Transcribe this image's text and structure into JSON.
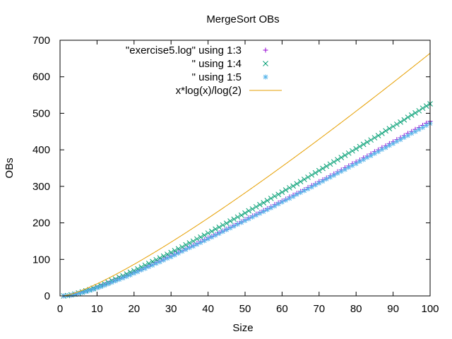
{
  "chart_data": {
    "type": "scatter",
    "title": "MergeSort OBs",
    "xlabel": "Size",
    "ylabel": "OBs",
    "xlim": [
      0,
      100
    ],
    "ylim": [
      0,
      700
    ],
    "xticks": [
      0,
      10,
      20,
      30,
      40,
      50,
      60,
      70,
      80,
      90,
      100
    ],
    "yticks": [
      0,
      100,
      200,
      300,
      400,
      500,
      600,
      700
    ],
    "grid": false,
    "legend_position": "top-inside",
    "series": [
      {
        "name": "\"exercise5.log\" using 1:3",
        "marker": "plus",
        "color": "#9400d3",
        "x": [
          1,
          2,
          3,
          4,
          5,
          6,
          7,
          8,
          9,
          10,
          11,
          12,
          13,
          14,
          15,
          16,
          17,
          18,
          19,
          20,
          21,
          22,
          23,
          24,
          25,
          26,
          27,
          28,
          29,
          30,
          31,
          32,
          33,
          34,
          35,
          36,
          37,
          38,
          39,
          40,
          41,
          42,
          43,
          44,
          45,
          46,
          47,
          48,
          49,
          50,
          51,
          52,
          53,
          54,
          55,
          56,
          57,
          58,
          59,
          60,
          61,
          62,
          63,
          64,
          65,
          66,
          67,
          68,
          69,
          70,
          71,
          72,
          73,
          74,
          75,
          76,
          77,
          78,
          79,
          80,
          81,
          82,
          83,
          84,
          85,
          86,
          87,
          88,
          89,
          90,
          91,
          92,
          93,
          94,
          95,
          96,
          97,
          98,
          99,
          100
        ],
        "y": [
          0,
          1,
          2,
          5,
          7,
          10,
          13,
          16,
          19,
          23,
          27,
          31,
          35,
          39,
          43,
          48,
          51,
          56,
          60,
          65,
          69,
          73,
          78,
          82,
          87,
          92,
          96,
          101,
          106,
          110,
          115,
          120,
          124,
          129,
          134,
          139,
          144,
          149,
          154,
          159,
          163,
          168,
          173,
          178,
          183,
          188,
          193,
          198,
          203,
          209,
          214,
          219,
          224,
          229,
          234,
          239,
          244,
          250,
          255,
          260,
          265,
          271,
          276,
          281,
          286,
          291,
          297,
          302,
          307,
          313,
          318,
          323,
          329,
          334,
          340,
          345,
          351,
          356,
          362,
          367,
          372,
          378,
          383,
          389,
          395,
          400,
          406,
          411,
          417,
          422,
          428,
          433,
          439,
          445,
          450,
          456,
          461,
          467,
          473,
          478
        ]
      },
      {
        "name": "\" using 1:4",
        "marker": "cross",
        "color": "#009e73",
        "x": [
          1,
          2,
          3,
          4,
          5,
          6,
          7,
          8,
          9,
          10,
          11,
          12,
          13,
          14,
          15,
          16,
          17,
          18,
          19,
          20,
          21,
          22,
          23,
          24,
          25,
          26,
          27,
          28,
          29,
          30,
          31,
          32,
          33,
          34,
          35,
          36,
          37,
          38,
          39,
          40,
          41,
          42,
          43,
          44,
          45,
          46,
          47,
          48,
          49,
          50,
          51,
          52,
          53,
          54,
          55,
          56,
          57,
          58,
          59,
          60,
          61,
          62,
          63,
          64,
          65,
          66,
          67,
          68,
          69,
          70,
          71,
          72,
          73,
          74,
          75,
          76,
          77,
          78,
          79,
          80,
          81,
          82,
          83,
          84,
          85,
          86,
          87,
          88,
          89,
          90,
          91,
          92,
          93,
          94,
          95,
          96,
          97,
          98,
          99,
          100
        ],
        "y": [
          0,
          1,
          3,
          5,
          8,
          11,
          14,
          17,
          21,
          25,
          29,
          33,
          37,
          42,
          46,
          51,
          55,
          60,
          65,
          69,
          74,
          79,
          84,
          89,
          94,
          99,
          104,
          109,
          114,
          119,
          124,
          129,
          134,
          140,
          145,
          150,
          156,
          161,
          166,
          172,
          177,
          183,
          188,
          194,
          199,
          205,
          210,
          216,
          221,
          227,
          233,
          238,
          244,
          250,
          255,
          261,
          267,
          273,
          278,
          284,
          290,
          296,
          301,
          307,
          313,
          319,
          325,
          331,
          337,
          343,
          349,
          355,
          361,
          367,
          373,
          379,
          385,
          391,
          397,
          403,
          409,
          415,
          421,
          427,
          433,
          439,
          445,
          452,
          458,
          464,
          470,
          476,
          482,
          489,
          495,
          501,
          507,
          514,
          520,
          526
        ]
      },
      {
        "name": "\" using 1:5",
        "marker": "star",
        "color": "#56b4e9",
        "x": [
          1,
          2,
          3,
          4,
          5,
          6,
          7,
          8,
          9,
          10,
          11,
          12,
          13,
          14,
          15,
          16,
          17,
          18,
          19,
          20,
          21,
          22,
          23,
          24,
          25,
          26,
          27,
          28,
          29,
          30,
          31,
          32,
          33,
          34,
          35,
          36,
          37,
          38,
          39,
          40,
          41,
          42,
          43,
          44,
          45,
          46,
          47,
          48,
          49,
          50,
          51,
          52,
          53,
          54,
          55,
          56,
          57,
          58,
          59,
          60,
          61,
          62,
          63,
          64,
          65,
          66,
          67,
          68,
          69,
          70,
          71,
          72,
          73,
          74,
          75,
          76,
          77,
          78,
          79,
          80,
          81,
          82,
          83,
          84,
          85,
          86,
          87,
          88,
          89,
          90,
          91,
          92,
          93,
          94,
          95,
          96,
          97,
          98,
          99,
          100
        ],
        "y": [
          0,
          1,
          2,
          4,
          7,
          9,
          12,
          15,
          18,
          22,
          25,
          29,
          33,
          37,
          41,
          45,
          49,
          53,
          57,
          62,
          66,
          71,
          75,
          80,
          84,
          89,
          93,
          98,
          103,
          107,
          112,
          117,
          122,
          127,
          132,
          136,
          141,
          146,
          151,
          156,
          161,
          166,
          171,
          176,
          181,
          186,
          191,
          196,
          201,
          206,
          211,
          216,
          221,
          226,
          231,
          236,
          241,
          246,
          252,
          257,
          262,
          267,
          272,
          278,
          283,
          288,
          293,
          298,
          304,
          309,
          314,
          320,
          325,
          330,
          336,
          341,
          346,
          352,
          357,
          362,
          368,
          373,
          379,
          384,
          390,
          395,
          401,
          406,
          412,
          417,
          423,
          428,
          434,
          439,
          445,
          450,
          456,
          461,
          467,
          472
        ]
      },
      {
        "name": "x*log(x)/log(2)",
        "marker": "line",
        "color": "#e69f00",
        "function": "x*log(x)/log(2)"
      }
    ]
  }
}
